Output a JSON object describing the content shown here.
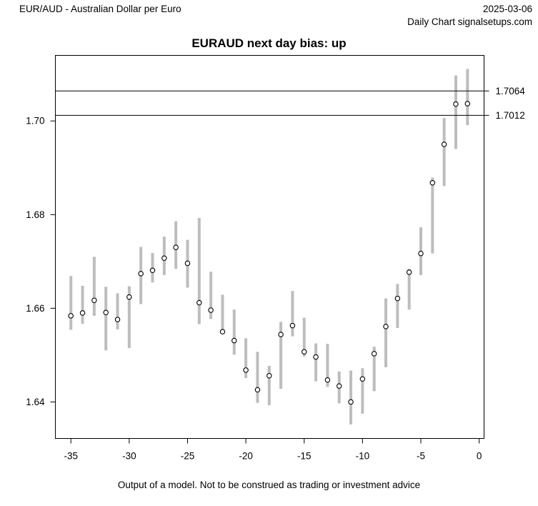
{
  "header": {
    "instrument": "EUR/AUD - Australian Dollar per Euro",
    "date": "2025-03-06",
    "source": "Daily Chart signalsetups.com"
  },
  "footer": {
    "disclaimer": "Output of a model. Not to be construed as trading or investment advice"
  },
  "chart_data": {
    "type": "scatter",
    "style": "vertical high-low range bars with open-circle point estimates",
    "title": "EURAUD next day bias: up",
    "xlabel": "",
    "ylabel": "",
    "x": [
      -35,
      -34,
      -33,
      -32,
      -31,
      -30,
      -29,
      -28,
      -27,
      -26,
      -25,
      -24,
      -23,
      -22,
      -21,
      -20,
      -19,
      -18,
      -17,
      -16,
      -15,
      -14,
      -13,
      -12,
      -11,
      -10,
      -9,
      -8,
      -7,
      -6,
      -5,
      -4,
      -3,
      -2,
      -1
    ],
    "series": [
      {
        "name": "high",
        "values": [
          1.6669,
          1.6648,
          1.671,
          1.6646,
          1.6632,
          1.6647,
          1.6731,
          1.6718,
          1.6753,
          1.6786,
          1.6746,
          1.6793,
          1.6678,
          1.6629,
          1.6597,
          1.6536,
          1.6507,
          1.6477,
          1.6571,
          1.6637,
          1.658,
          1.6525,
          1.6524,
          1.6465,
          1.6467,
          1.6472,
          1.6518,
          1.6621,
          1.6652,
          1.6684,
          1.6773,
          1.6879,
          1.7006,
          1.7097,
          1.7111
        ]
      },
      {
        "name": "low",
        "values": [
          1.6554,
          1.6567,
          1.6584,
          1.651,
          1.6555,
          1.6515,
          1.6609,
          1.6655,
          1.6671,
          1.6684,
          1.6644,
          1.6566,
          1.6577,
          1.6545,
          1.6501,
          1.6451,
          1.6398,
          1.6393,
          1.6428,
          1.654,
          1.6497,
          1.6444,
          1.6432,
          1.6397,
          1.6352,
          1.6375,
          1.6423,
          1.6474,
          1.6558,
          1.6597,
          1.6671,
          1.6717,
          1.6861,
          1.694,
          1.6991
        ]
      },
      {
        "name": "estimate",
        "values": [
          1.6584,
          1.659,
          1.6617,
          1.6591,
          1.6576,
          1.6624,
          1.6674,
          1.6681,
          1.6707,
          1.673,
          1.6696,
          1.6612,
          1.6596,
          1.655,
          1.6531,
          1.6468,
          1.6426,
          1.6456,
          1.6544,
          1.6563,
          1.6507,
          1.6496,
          1.6447,
          1.6434,
          1.64,
          1.6449,
          1.6503,
          1.6561,
          1.6621,
          1.6677,
          1.6717,
          1.6868,
          1.695,
          1.7036,
          1.7037
        ]
      }
    ],
    "hlines": [
      {
        "value": 1.7064,
        "label": "1.7064"
      },
      {
        "value": 1.7012,
        "label": "1.7012"
      }
    ],
    "xticks": [
      -35,
      -30,
      -25,
      -20,
      -15,
      -10,
      -5,
      0
    ],
    "yticks": [
      1.64,
      1.66,
      1.68,
      1.7
    ],
    "xlim": [
      -36.33,
      0.42
    ],
    "ylim": [
      1.6322,
      1.714
    ],
    "grid": false,
    "legend": "none",
    "colors": {
      "bar": "#bdbdbd",
      "point_fill": "#ffffff",
      "point_stroke": "#000000",
      "line": "#000000",
      "text": "#000000",
      "background": "#ffffff"
    }
  }
}
